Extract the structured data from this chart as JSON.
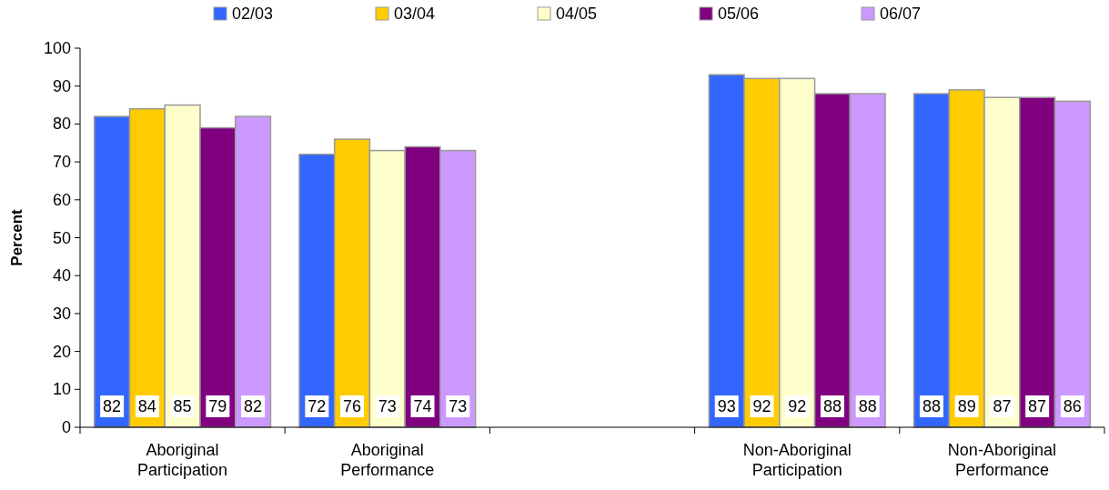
{
  "chart_data": {
    "type": "bar",
    "ylabel": "Percent",
    "categories": [
      "Aboriginal Participation",
      "Aboriginal Performance",
      null,
      "Non-Aboriginal Participation",
      "Non-Aboriginal Performance"
    ],
    "series": [
      {
        "name": "02/03",
        "color": "#3366ff",
        "values": [
          82,
          72,
          null,
          93,
          88
        ]
      },
      {
        "name": "03/04",
        "color": "#ffcc00",
        "values": [
          84,
          76,
          null,
          92,
          89
        ]
      },
      {
        "name": "04/05",
        "color": "#ffffcc",
        "values": [
          85,
          73,
          null,
          92,
          87
        ]
      },
      {
        "name": "05/06",
        "color": "#800080",
        "values": [
          79,
          74,
          null,
          88,
          87
        ]
      },
      {
        "name": "06/07",
        "color": "#cc99ff",
        "values": [
          82,
          73,
          null,
          88,
          86
        ]
      }
    ],
    "ylim": [
      0,
      100
    ],
    "yticks": [
      0,
      10,
      20,
      30,
      40,
      50,
      60,
      70,
      80,
      90,
      100
    ],
    "legend": "top",
    "data_labels": true
  }
}
